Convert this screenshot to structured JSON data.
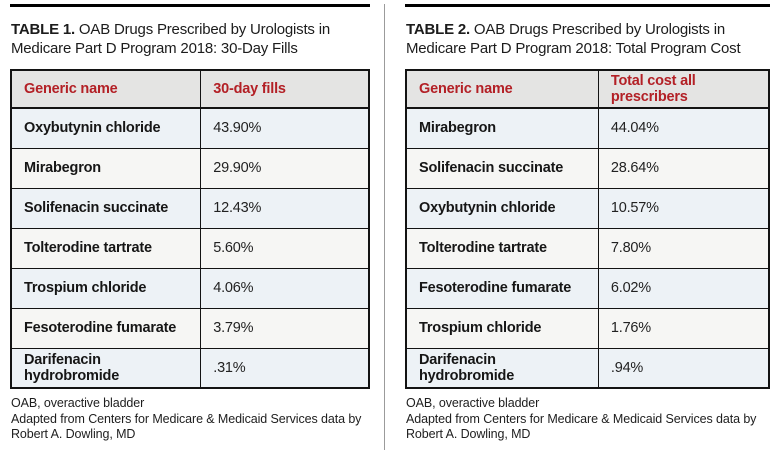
{
  "colors": {
    "accent_red": "#b32026",
    "header_row_bg": "#e4e4e3",
    "row_odd_bg": "#edf2f6",
    "row_even_bg": "#f6f6f4",
    "table_border": "#131313",
    "top_rule": "#000000",
    "column_divider": "#9b9b9b"
  },
  "tables": [
    {
      "title_label": "TABLE 1.",
      "title_text": " OAB Drugs Prescribed by Urologists in Medicare Part D Program 2018: 30-Day Fills",
      "columns": [
        "Generic name",
        "30-day fills"
      ],
      "rows": [
        [
          "Oxybutynin chloride",
          "43.90%"
        ],
        [
          "Mirabegron",
          "29.90%"
        ],
        [
          "Solifenacin succinate",
          "12.43%"
        ],
        [
          "Tolterodine tartrate",
          "5.60%"
        ],
        [
          "Trospium chloride",
          "4.06%"
        ],
        [
          "Fesoterodine fumarate",
          "3.79%"
        ],
        [
          "Darifenacin hydrobromide",
          ".31%"
        ]
      ],
      "footnotes": [
        "OAB, overactive bladder",
        "Adapted from Centers for Medicare & Medicaid Services data by Robert A. Dowling, MD"
      ]
    },
    {
      "title_label": "TABLE 2.",
      "title_text": " OAB Drugs Prescribed by Urologists in Medicare Part D Program 2018: Total Program Cost",
      "columns": [
        "Generic name",
        "Total cost all prescribers"
      ],
      "rows": [
        [
          "Mirabegron",
          "44.04%"
        ],
        [
          "Solifenacin succinate",
          "28.64%"
        ],
        [
          "Oxybutynin chloride",
          "10.57%"
        ],
        [
          "Tolterodine tartrate",
          "7.80%"
        ],
        [
          "Fesoterodine fumarate",
          "6.02%"
        ],
        [
          "Trospium chloride",
          "1.76%"
        ],
        [
          "Darifenacin hydrobromide",
          ".94%"
        ]
      ],
      "footnotes": [
        "OAB, overactive bladder",
        "Adapted from Centers for Medicare & Medicaid Services data by Robert A. Dowling, MD"
      ]
    }
  ],
  "chart_data": [
    {
      "type": "table",
      "title": "OAB Drugs Prescribed by Urologists in Medicare Part D Program 2018: 30-Day Fills",
      "categories": [
        "Oxybutynin chloride",
        "Mirabegron",
        "Solifenacin succinate",
        "Tolterodine tartrate",
        "Trospium chloride",
        "Fesoterodine fumarate",
        "Darifenacin hydrobromide"
      ],
      "values": [
        43.9,
        29.9,
        12.43,
        5.6,
        4.06,
        3.79,
        0.31
      ],
      "value_label": "30-day fills (%)"
    },
    {
      "type": "table",
      "title": "OAB Drugs Prescribed by Urologists in Medicare Part D Program 2018: Total Program Cost",
      "categories": [
        "Mirabegron",
        "Solifenacin succinate",
        "Oxybutynin chloride",
        "Tolterodine tartrate",
        "Fesoterodine fumarate",
        "Trospium chloride",
        "Darifenacin hydrobromide"
      ],
      "values": [
        44.04,
        28.64,
        10.57,
        7.8,
        6.02,
        1.76,
        0.94
      ],
      "value_label": "Total cost all prescribers (%)"
    }
  ]
}
